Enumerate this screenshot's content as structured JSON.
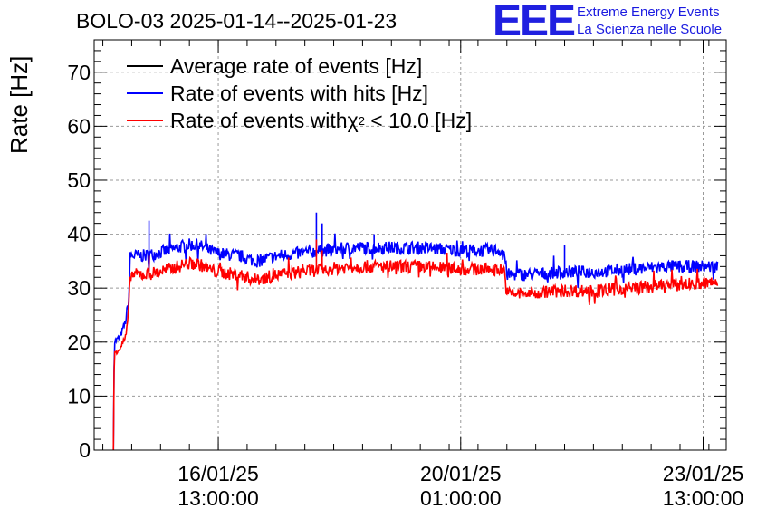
{
  "header": {
    "title": "BOLO-03 2025-01-14--2025-01-23",
    "logo": "EEE",
    "logo_line1": "Extreme Energy Events",
    "logo_line2": "La Scienza nelle Scuole"
  },
  "colors": {
    "average": "#000000",
    "hits": "#0000ff",
    "chi2": "#ff0000",
    "grid": "#9a9a9a",
    "logo": "#2020e0"
  },
  "chart_data": {
    "type": "line",
    "title": "BOLO-03 2025-01-14--2025-01-23",
    "ylabel": "Rate [Hz]",
    "xlabel": "",
    "ylim": [
      0,
      76
    ],
    "xlim": [
      "2025-01-14 18:00",
      "2025-01-23 21:00"
    ],
    "grid": true,
    "legend_position": "top-left",
    "y_ticks": [
      "0",
      "10",
      "20",
      "30",
      "40",
      "50",
      "60",
      "70"
    ],
    "x_ticks": [
      {
        "time": "2025-01-16 13:00",
        "line1": "16/01/25",
        "line2": "13:00:00"
      },
      {
        "time": "2025-01-20 01:00",
        "line1": "20/01/25",
        "line2": "01:00:00"
      },
      {
        "time": "2025-01-23 13:00",
        "line1": "23/01/25",
        "line2": "13:00:00"
      }
    ],
    "legend": [
      {
        "key": "average",
        "label": "Average rate of events [Hz]"
      },
      {
        "key": "hits",
        "label": "Rate of events with hits [Hz]"
      },
      {
        "key": "chi2",
        "label_pre": "Rate of events with ",
        "label_chi": "χ",
        "label_sup": "2",
        "label_post": " < 10.0 [Hz]"
      }
    ],
    "series": [
      {
        "key": "hits",
        "name": "Rate of events with hits [Hz]",
        "noise": 1.2,
        "points": [
          [
            "2025-01-15 00:40",
            0
          ],
          [
            "2025-01-15 00:45",
            10
          ],
          [
            "2025-01-15 01:00",
            20
          ],
          [
            "2025-01-15 03:00",
            21
          ],
          [
            "2025-01-15 05:00",
            24
          ],
          [
            "2025-01-15 06:00",
            28
          ],
          [
            "2025-01-15 06:30",
            36
          ],
          [
            "2025-01-15 12:00",
            36
          ],
          [
            "2025-01-15 20:00",
            37
          ],
          [
            "2025-01-16 02:00",
            38
          ],
          [
            "2025-01-16 06:00",
            38
          ],
          [
            "2025-01-16 12:00",
            36.5
          ],
          [
            "2025-01-16 20:00",
            36
          ],
          [
            "2025-01-17 02:00",
            35
          ],
          [
            "2025-01-17 10:00",
            36
          ],
          [
            "2025-01-17 18:00",
            36.5
          ],
          [
            "2025-01-18 02:00",
            37
          ],
          [
            "2025-01-18 12:00",
            37.5
          ],
          [
            "2025-01-19 00:00",
            37.5
          ],
          [
            "2025-01-19 12:00",
            37.5
          ],
          [
            "2025-01-20 00:00",
            37
          ],
          [
            "2025-01-20 14:00",
            37
          ],
          [
            "2025-01-20 16:00",
            37
          ],
          [
            "2025-01-20 17:00",
            32.5
          ],
          [
            "2025-01-21 00:00",
            32.5
          ],
          [
            "2025-01-21 12:00",
            33
          ],
          [
            "2025-01-22 00:00",
            33
          ],
          [
            "2025-01-22 12:00",
            33.5
          ],
          [
            "2025-01-23 00:00",
            34
          ],
          [
            "2025-01-23 18:00",
            34
          ]
        ],
        "spikes": [
          [
            "2025-01-15 13:00",
            42.5
          ],
          [
            "2025-01-17 23:00",
            44
          ],
          [
            "2025-01-18 01:00",
            42
          ],
          [
            "2025-01-21 13:00",
            38
          ],
          [
            "2025-01-18 19:00",
            40
          ]
        ]
      },
      {
        "key": "chi2",
        "name": "Rate of events with χ2 < 10.0 [Hz]",
        "noise": 1.2,
        "points": [
          [
            "2025-01-15 00:40",
            0
          ],
          [
            "2025-01-15 00:45",
            9
          ],
          [
            "2025-01-15 01:00",
            18
          ],
          [
            "2025-01-15 03:00",
            19
          ],
          [
            "2025-01-15 05:00",
            21
          ],
          [
            "2025-01-15 06:00",
            26
          ],
          [
            "2025-01-15 06:30",
            32.5
          ],
          [
            "2025-01-15 12:00",
            32.5
          ],
          [
            "2025-01-15 20:00",
            33.5
          ],
          [
            "2025-01-16 02:00",
            34.5
          ],
          [
            "2025-01-16 06:00",
            34.5
          ],
          [
            "2025-01-16 12:00",
            33
          ],
          [
            "2025-01-16 20:00",
            32.5
          ],
          [
            "2025-01-17 02:00",
            31.5
          ],
          [
            "2025-01-17 10:00",
            32.5
          ],
          [
            "2025-01-17 18:00",
            33
          ],
          [
            "2025-01-18 02:00",
            33.5
          ],
          [
            "2025-01-18 12:00",
            34
          ],
          [
            "2025-01-19 00:00",
            34
          ],
          [
            "2025-01-19 12:00",
            34
          ],
          [
            "2025-01-20 00:00",
            33.5
          ],
          [
            "2025-01-20 14:00",
            33.5
          ],
          [
            "2025-01-20 16:00",
            33.5
          ],
          [
            "2025-01-20 17:00",
            29
          ],
          [
            "2025-01-21 00:00",
            29
          ],
          [
            "2025-01-21 12:00",
            29.5
          ],
          [
            "2025-01-22 00:00",
            29.5
          ],
          [
            "2025-01-22 12:00",
            30
          ],
          [
            "2025-01-23 00:00",
            30.5
          ],
          [
            "2025-01-23 18:00",
            31
          ]
        ],
        "spikes": [
          [
            "2025-01-15 13:00",
            36
          ],
          [
            "2025-01-17 23:00",
            39
          ],
          [
            "2025-01-18 01:00",
            37
          ]
        ]
      }
    ]
  }
}
